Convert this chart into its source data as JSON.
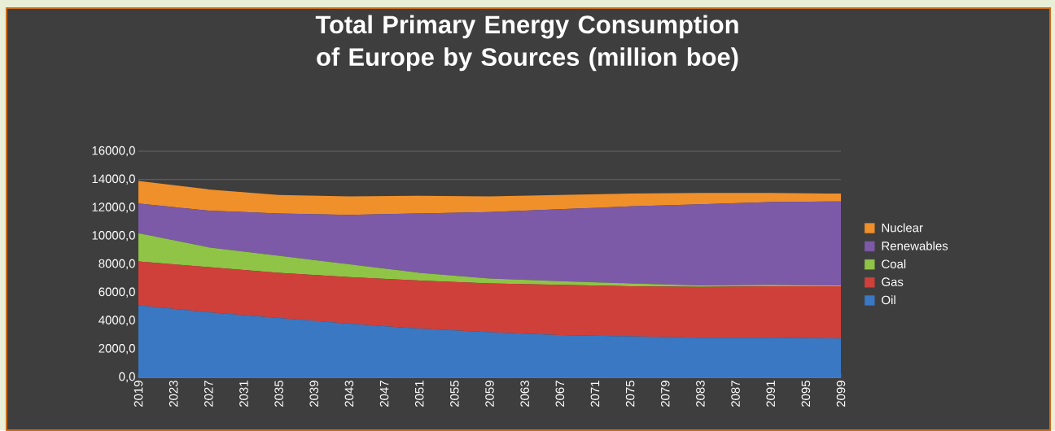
{
  "chart_data": {
    "type": "area",
    "title": "Total Primary Energy Consumption of Europe by Sources (million boe)",
    "stacked": true,
    "grid": "y",
    "legend": "right",
    "x": [
      2019,
      2027,
      2035,
      2043,
      2051,
      2059,
      2067,
      2075,
      2083,
      2091,
      2099
    ],
    "xlim": [
      2019,
      2099
    ],
    "xticks": [
      2019,
      2023,
      2027,
      2031,
      2035,
      2039,
      2043,
      2047,
      2051,
      2055,
      2059,
      2063,
      2067,
      2071,
      2075,
      2079,
      2083,
      2087,
      2091,
      2095,
      2099
    ],
    "ylim": [
      0,
      16000
    ],
    "yticks": [
      {
        "value": 0,
        "label": "0,0"
      },
      {
        "value": 2000,
        "label": "2000,0"
      },
      {
        "value": 4000,
        "label": "4000,0"
      },
      {
        "value": 6000,
        "label": "6000,0"
      },
      {
        "value": 8000,
        "label": "8000,0"
      },
      {
        "value": 10000,
        "label": "10000,0"
      },
      {
        "value": 12000,
        "label": "12000,0"
      },
      {
        "value": 14000,
        "label": "14000,0"
      },
      {
        "value": 16000,
        "label": "16000,0"
      }
    ],
    "series": [
      {
        "name": "Oil",
        "color": "#3a78c3",
        "values": [
          5100,
          4600,
          4200,
          3800,
          3450,
          3200,
          3000,
          2900,
          2800,
          2800,
          2750
        ]
      },
      {
        "name": "Gas",
        "color": "#d0403a",
        "values": [
          3100,
          3200,
          3200,
          3300,
          3400,
          3450,
          3550,
          3550,
          3600,
          3650,
          3700
        ]
      },
      {
        "name": "Coal",
        "color": "#8fc447",
        "values": [
          2000,
          1400,
          1200,
          900,
          550,
          350,
          250,
          200,
          100,
          100,
          50
        ]
      },
      {
        "name": "Renewables",
        "color": "#7c5aa8",
        "values": [
          2100,
          2600,
          3000,
          3500,
          4200,
          4700,
          5100,
          5450,
          5750,
          5850,
          5950
        ]
      },
      {
        "name": "Nuclear",
        "color": "#f0902a",
        "values": [
          1600,
          1500,
          1300,
          1300,
          1250,
          1100,
          1000,
          900,
          800,
          650,
          550
        ]
      }
    ]
  }
}
